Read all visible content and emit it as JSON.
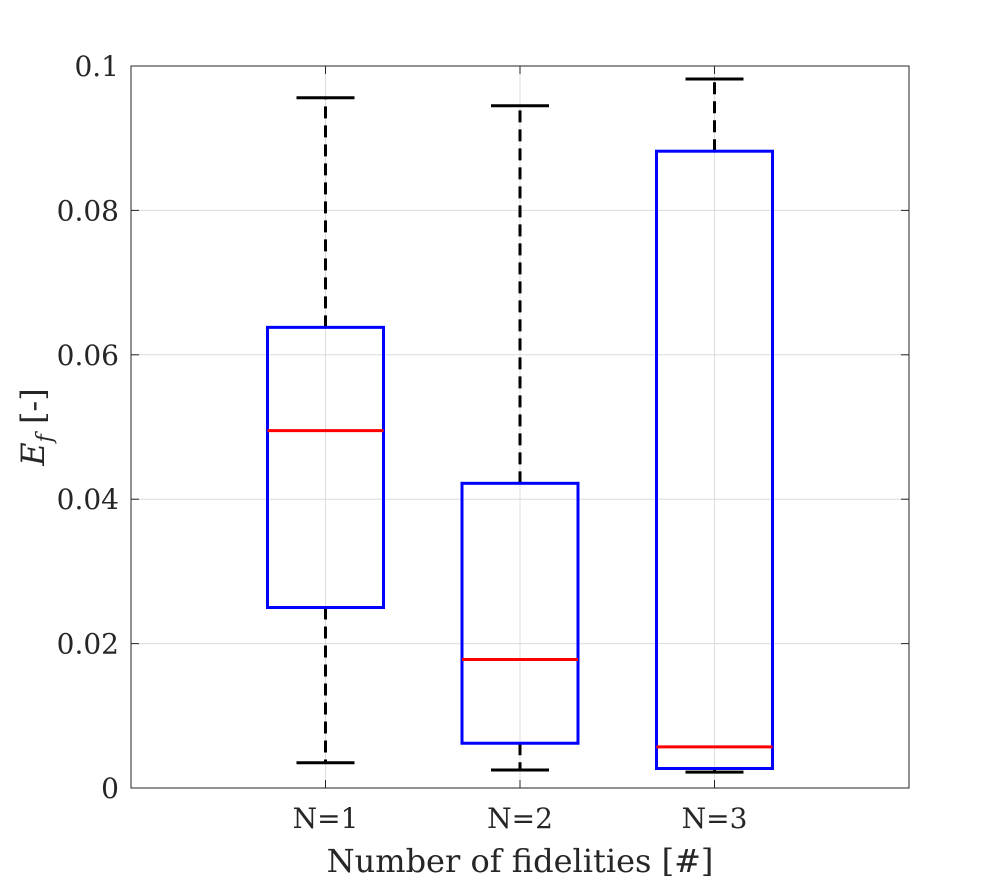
{
  "chart_data": {
    "type": "box",
    "title": "",
    "xlabel": "Number of fidelities [#]",
    "ylabel": "E",
    "ylabel_subscript": "f",
    "ylabel_suffix": " [-]",
    "ylim": [
      0,
      0.1
    ],
    "yticks": [
      0,
      0.02,
      0.04,
      0.06,
      0.08,
      0.1
    ],
    "ytick_labels": [
      "0",
      "0.02",
      "0.04",
      "0.06",
      "0.08",
      "0.1"
    ],
    "categories": [
      "N=1",
      "N=2",
      "N=3"
    ],
    "grid": true,
    "colors": {
      "box": "#0000ff",
      "median": "#ff0000",
      "whisker": "#000000",
      "grid": "#dcdcdc",
      "axis": "#262626"
    },
    "boxes": [
      {
        "label": "N=1",
        "whisker_low": 0.0035,
        "q1": 0.025,
        "median": 0.0495,
        "q3": 0.0638,
        "whisker_high": 0.0956
      },
      {
        "label": "N=2",
        "whisker_low": 0.0025,
        "q1": 0.0062,
        "median": 0.0178,
        "q3": 0.0422,
        "whisker_high": 0.0945
      },
      {
        "label": "N=3",
        "whisker_low": 0.0022,
        "q1": 0.0027,
        "median": 0.0057,
        "q3": 0.0882,
        "whisker_high": 0.0982
      }
    ]
  }
}
